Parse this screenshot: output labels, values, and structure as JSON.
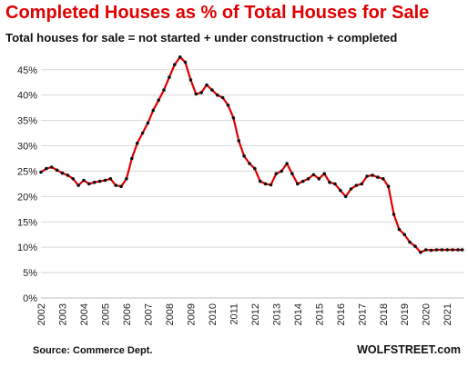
{
  "header": {
    "title": "Completed Houses as % of Total Houses for Sale",
    "subtitle": "Total houses for sale = not started + under construction + completed"
  },
  "footer": {
    "source": "Source: Commerce Dept.",
    "brand": "WOLFSTREET.com"
  },
  "colors": {
    "title": "#e00000",
    "line": "#e00000",
    "markers": "#111111",
    "grid": "#d9d9d9"
  },
  "chart_data": {
    "type": "line",
    "title": "Completed Houses as % of Total Houses for Sale",
    "subtitle": "Total houses for sale = not started + under construction + completed",
    "xlabel": "",
    "ylabel": "",
    "ylim": [
      0,
      48
    ],
    "y_ticks": [
      "0%",
      "5%",
      "10%",
      "15%",
      "20%",
      "25%",
      "30%",
      "35%",
      "40%",
      "45%"
    ],
    "y_tick_values": [
      0,
      5,
      10,
      15,
      20,
      25,
      30,
      35,
      40,
      45
    ],
    "x_ticks": [
      "2002",
      "2003",
      "2004",
      "2005",
      "2006",
      "2007",
      "2008",
      "2009",
      "2010",
      "2011",
      "2012",
      "2013",
      "2014",
      "2015",
      "2016",
      "2017",
      "2018",
      "2019",
      "2020",
      "2021"
    ],
    "xlim": [
      2002,
      2021.8
    ],
    "grid": "horizontal",
    "legend": "none",
    "series": [
      {
        "x": [
          2002.0,
          2002.25,
          2002.5,
          2002.75,
          2003.0,
          2003.25,
          2003.5,
          2003.75,
          2004.0,
          2004.25,
          2004.5,
          2004.75,
          2005.0,
          2005.25,
          2005.5,
          2005.75,
          2006.0,
          2006.25,
          2006.5,
          2006.75,
          2007.0,
          2007.25,
          2007.5,
          2007.75,
          2008.0,
          2008.25,
          2008.5,
          2008.75,
          2009.0,
          2009.25,
          2009.5,
          2009.75,
          2010.0,
          2010.25,
          2010.5,
          2010.75,
          2011.0,
          2011.25,
          2011.5,
          2011.75,
          2012.0,
          2012.25,
          2012.5,
          2012.75,
          2013.0,
          2013.25,
          2013.5,
          2013.75,
          2014.0,
          2014.25,
          2014.5,
          2014.75,
          2015.0,
          2015.25,
          2015.5,
          2015.75,
          2016.0,
          2016.25,
          2016.5,
          2016.75,
          2017.0,
          2017.25,
          2017.5,
          2017.75,
          2018.0,
          2018.25,
          2018.5,
          2018.75,
          2019.0,
          2019.25,
          2019.5,
          2019.75,
          2020.0,
          2020.25,
          2020.5,
          2020.75,
          2021.0,
          2021.25,
          2021.5,
          2021.7
        ],
        "values": [
          24.8,
          25.5,
          25.8,
          25.2,
          24.6,
          24.2,
          23.5,
          22.2,
          23.2,
          22.5,
          22.8,
          23.0,
          23.2,
          23.5,
          22.2,
          22.0,
          23.5,
          27.5,
          30.5,
          32.5,
          34.5,
          37.0,
          39.0,
          41.0,
          43.5,
          46.0,
          47.5,
          46.5,
          43.0,
          40.2,
          40.5,
          42.0,
          41.0,
          40.0,
          39.5,
          38.0,
          35.5,
          31.0,
          28.0,
          26.5,
          25.5,
          23.0,
          22.5,
          22.3,
          24.5,
          25.0,
          26.5,
          24.5,
          22.5,
          23.0,
          23.5,
          24.3,
          23.5,
          24.5,
          22.8,
          22.5,
          21.2,
          20.0,
          21.5,
          22.2,
          22.5,
          24.0,
          24.2,
          23.8,
          23.5,
          22.0,
          16.5,
          13.5,
          12.5,
          11.0,
          10.2,
          9.0,
          9.5,
          9.4,
          9.5,
          9.5,
          9.5,
          9.5,
          9.5,
          9.5
        ]
      }
    ]
  }
}
